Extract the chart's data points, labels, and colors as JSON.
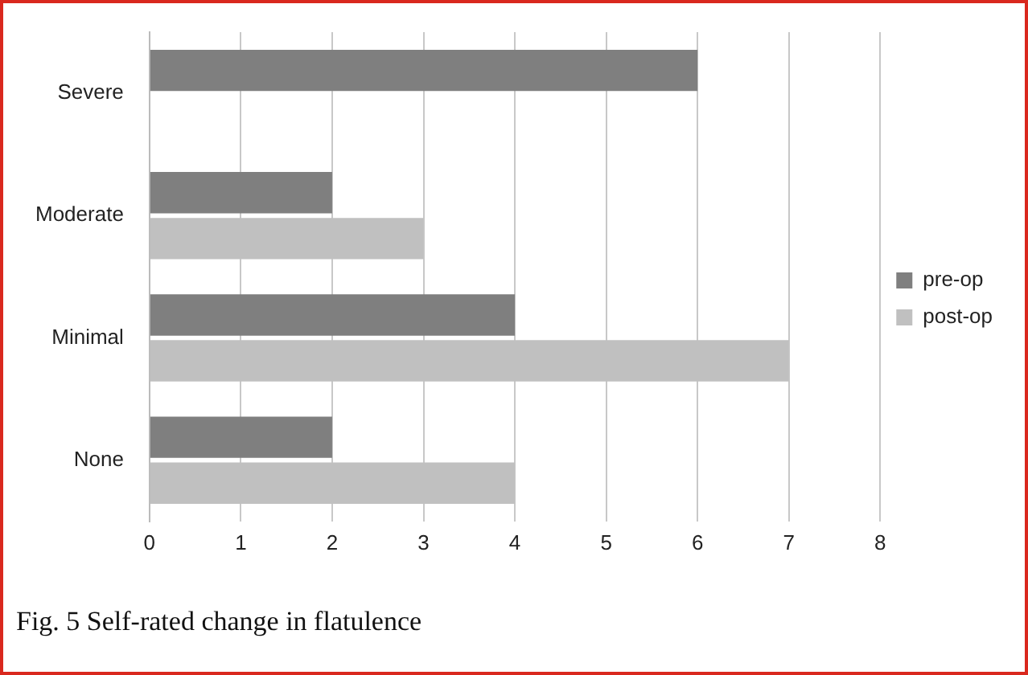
{
  "chart_data": {
    "type": "bar",
    "orientation": "horizontal",
    "categories": [
      "Severe",
      "Moderate",
      "Minimal",
      "None"
    ],
    "series": [
      {
        "name": "pre-op",
        "color": "#7f7f7f",
        "values": [
          6,
          2,
          4,
          2
        ]
      },
      {
        "name": "post-op",
        "color": "#c0c0c0",
        "values": [
          0,
          3,
          7,
          4
        ]
      }
    ],
    "xlim": [
      0,
      8
    ],
    "xticks": [
      0,
      1,
      2,
      3,
      4,
      5,
      6,
      7,
      8
    ],
    "grid": "x",
    "legend": "right",
    "annotations": [
      "Fig. 5  Self-rated change in flatulence"
    ]
  }
}
